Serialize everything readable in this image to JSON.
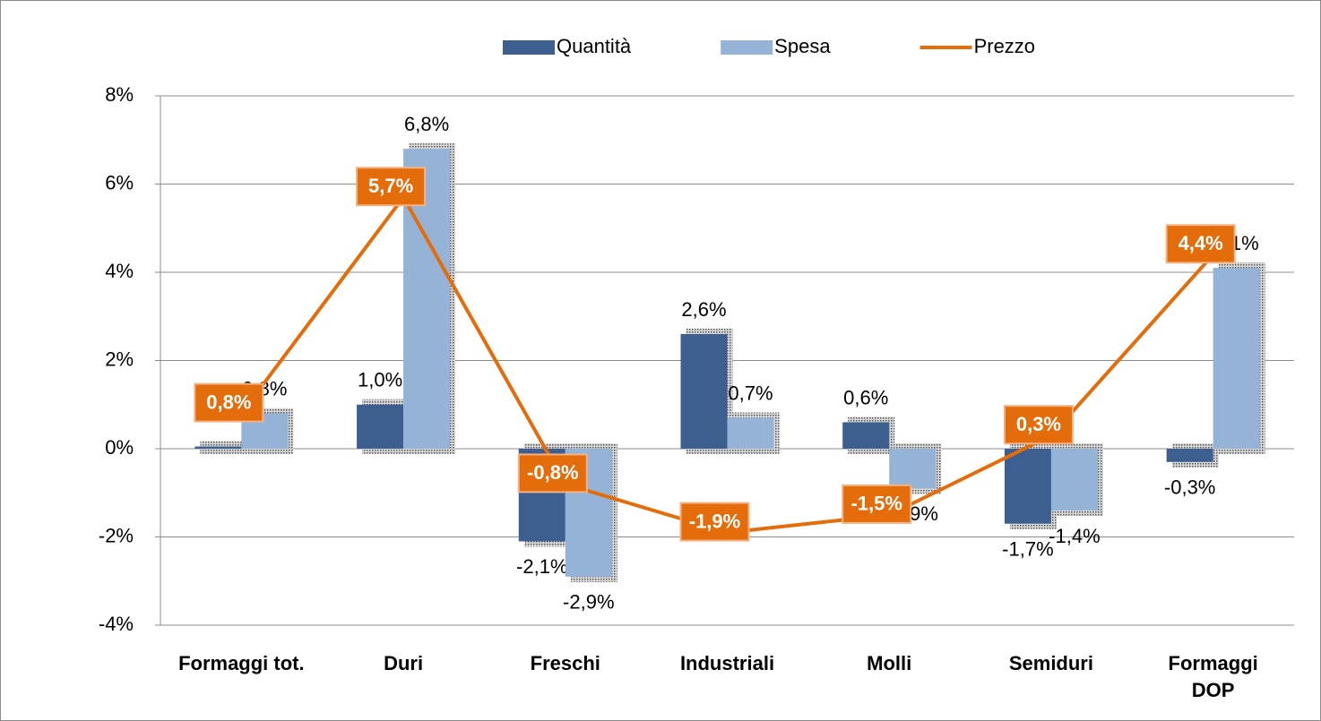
{
  "chart_data": {
    "type": "bar_line",
    "categories": [
      "Formaggi tot.",
      "Duri",
      "Freschi",
      "Industriali",
      "Molli",
      "Semiduri",
      "Formaggi\nDOP"
    ],
    "series": [
      {
        "name": "Quantità",
        "type": "bar",
        "color": "#3d5f8f",
        "values": [
          0.05,
          1.0,
          -2.1,
          2.6,
          0.6,
          -1.7,
          -0.3
        ],
        "value_labels": [
          null,
          "1,0%",
          "-2,1%",
          "2,6%",
          "0,6%",
          "-1,7%",
          "-0,3%"
        ]
      },
      {
        "name": "Spesa",
        "type": "bar",
        "color": "#95b3d7",
        "values": [
          0.8,
          6.8,
          -2.9,
          0.7,
          -0.9,
          -1.4,
          4.1
        ],
        "value_labels": [
          "0,8%",
          "6,8%",
          "-2,9%",
          "0,7%",
          "-0,9%",
          "-1,4%",
          "4,1%"
        ]
      },
      {
        "name": "Prezzo",
        "type": "line",
        "color": "#e46c0a",
        "values": [
          0.8,
          5.7,
          -0.8,
          -1.9,
          -1.5,
          0.3,
          4.4
        ],
        "value_labels": [
          "0,8%",
          "5,7%",
          "-0,8%",
          "-1,9%",
          "-1,5%",
          "0,3%",
          "4,4%"
        ]
      }
    ],
    "ylim": [
      -4,
      8
    ],
    "yticks": [
      {
        "value": -4,
        "label": "-4%"
      },
      {
        "value": -2,
        "label": "-2%"
      },
      {
        "value": 0,
        "label": "0%"
      },
      {
        "value": 2,
        "label": "2%"
      },
      {
        "value": 4,
        "label": "4%"
      },
      {
        "value": 6,
        "label": "6%"
      },
      {
        "value": 8,
        "label": "8%"
      }
    ],
    "grid": true,
    "legend": "top"
  }
}
